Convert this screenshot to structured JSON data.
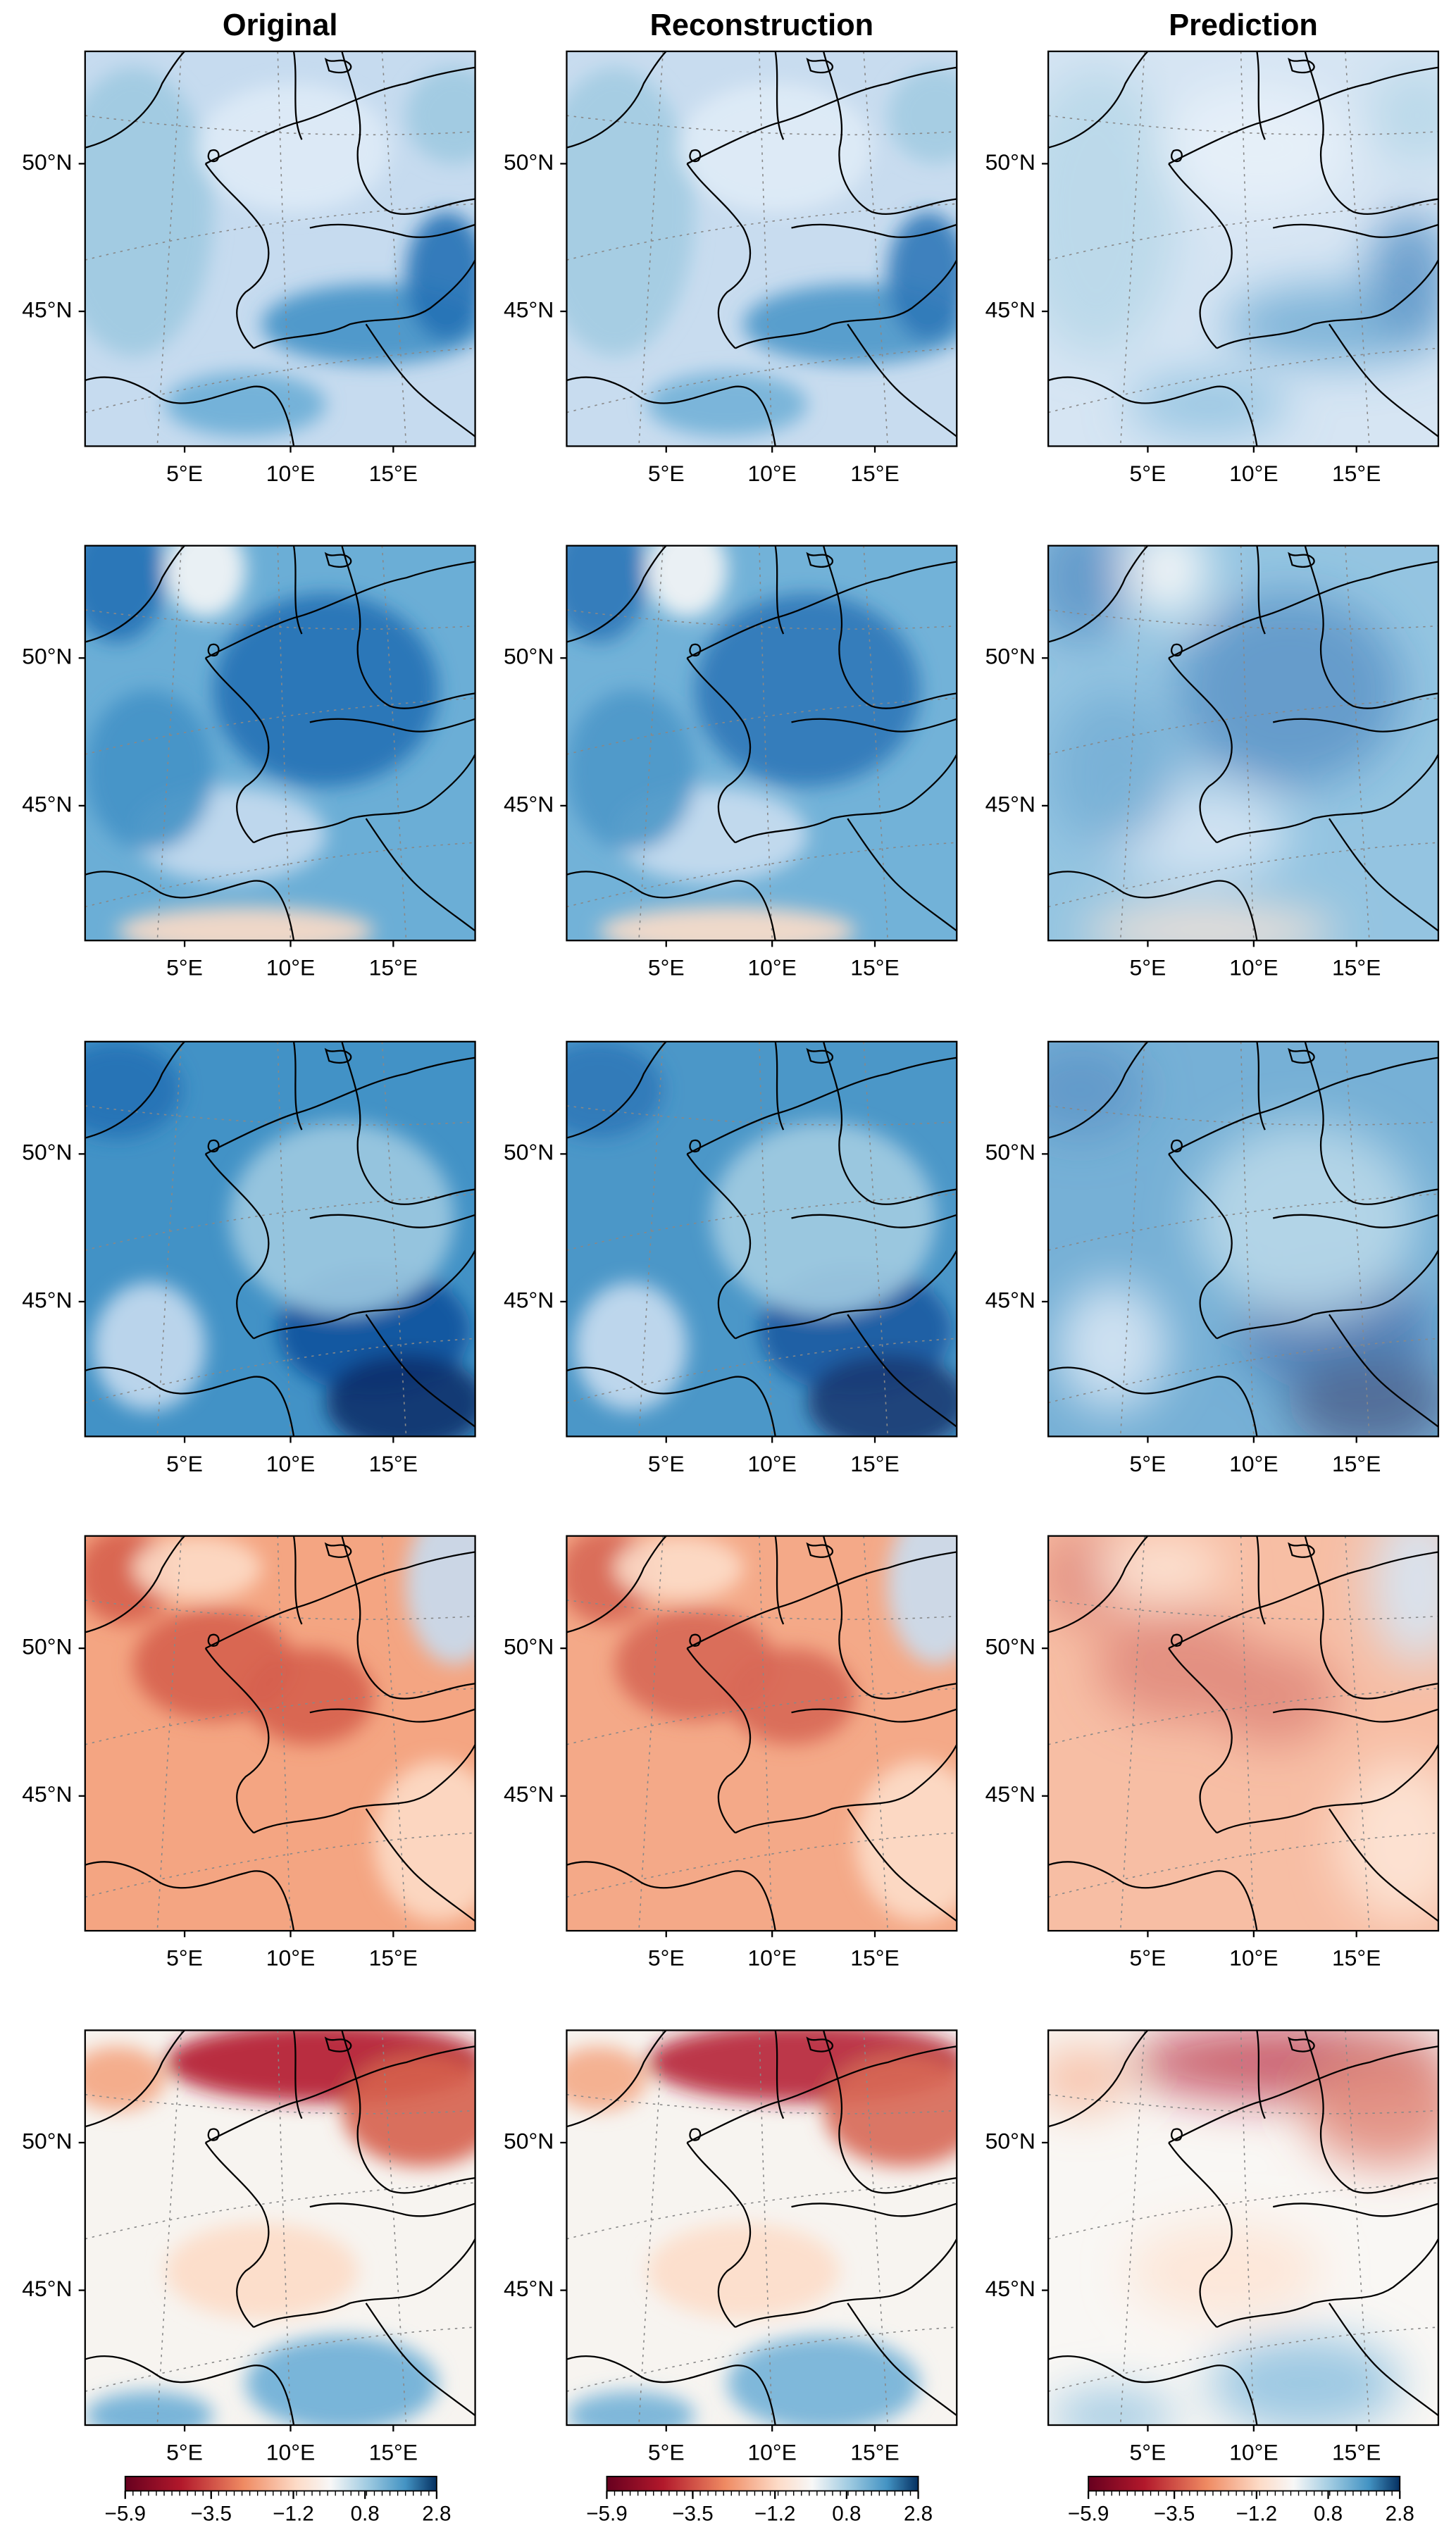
{
  "columns": [
    "Original",
    "Reconstruction",
    "Prediction"
  ],
  "lat_labels": [
    "50°N",
    "45°N"
  ],
  "lon_labels": [
    "5°E",
    "10°E",
    "15°E"
  ],
  "colorbar_labels": [
    "−5.9",
    "−3.5",
    "−1.2",
    "0.8",
    "2.8"
  ]
}
